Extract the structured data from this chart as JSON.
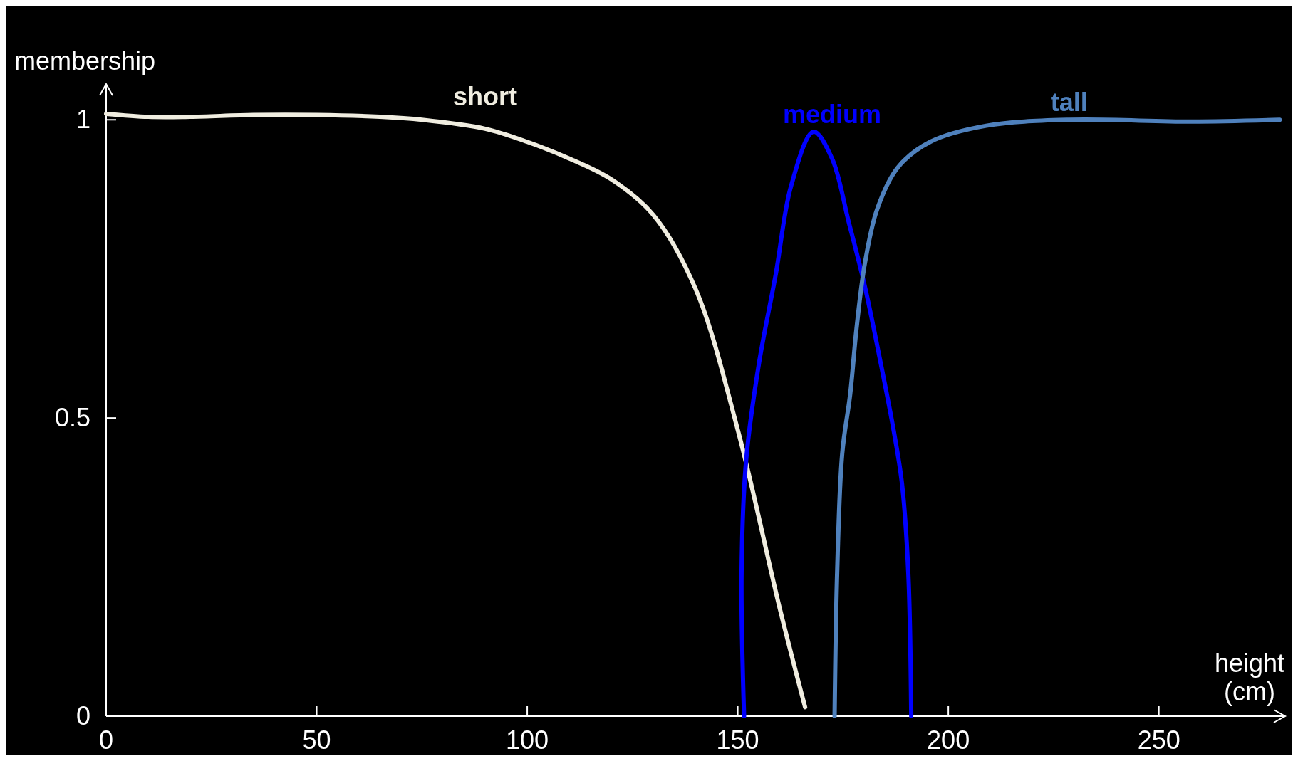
{
  "chart_data": {
    "type": "line",
    "xlabel": "height (cm)",
    "ylabel": "membership",
    "xlim": [
      0,
      280
    ],
    "ylim": [
      0,
      1.06
    ],
    "xticks": [
      0,
      50,
      100,
      150,
      200,
      250
    ],
    "yticks": [
      0,
      0.5,
      1
    ],
    "grid": false,
    "marker": "none",
    "line_style": "solid",
    "series": [
      {
        "name": "short",
        "color": "#f0ede0",
        "x": [
          0,
          10,
          20,
          35,
          50,
          65,
          75,
          90,
          100,
          110,
          120,
          130,
          140,
          150,
          160,
          166
        ],
        "values": [
          1.01,
          1.005,
          1.005,
          1.008,
          1.008,
          1.005,
          1.0,
          0.985,
          0.963,
          0.935,
          0.9,
          0.84,
          0.716,
          0.48,
          0.18,
          0.015
        ]
      },
      {
        "name": "medium",
        "color": "#0000ff",
        "x": [
          151.5,
          150.9,
          152,
          155,
          159,
          162.7,
          168,
          172.4,
          176.3,
          180.2,
          184,
          187,
          189,
          190.5,
          191.2
        ],
        "values": [
          0,
          0.24,
          0.43,
          0.59,
          0.74,
          0.89,
          0.98,
          0.935,
          0.83,
          0.72,
          0.59,
          0.48,
          0.39,
          0.24,
          0
        ]
      },
      {
        "name": "tall",
        "color": "#4f81bd",
        "x": [
          173,
          173.6,
          174.8,
          176.7,
          178.2,
          180.2,
          183.1,
          188,
          195.7,
          209,
          228.7,
          257.8,
          278.7
        ],
        "values": [
          0,
          0.24,
          0.44,
          0.54,
          0.65,
          0.76,
          0.85,
          0.92,
          0.963,
          0.99,
          1.0,
          0.997,
          1.0
        ]
      }
    ]
  }
}
